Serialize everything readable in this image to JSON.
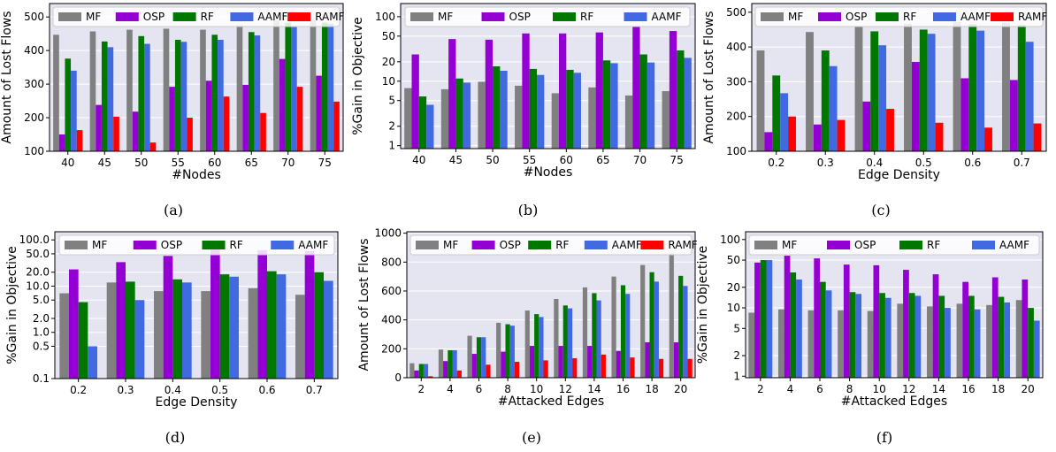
{
  "colors": {
    "MF": "#808080",
    "OSP": "#9400D3",
    "RF": "#007800",
    "AAMF": "#4169E1",
    "RAMF": "#FF0000"
  },
  "chart_data": [
    {
      "id": "a",
      "type": "bar",
      "caption": "(a)",
      "xlabel": "#Nodes",
      "ylabel": "Amount of Lost Flows",
      "yscale": "linear",
      "ylim": [
        100,
        540
      ],
      "yticks": [
        100,
        200,
        300,
        400,
        500
      ],
      "categories": [
        "40",
        "45",
        "50",
        "55",
        "60",
        "65",
        "70",
        "75"
      ],
      "legend": "top",
      "series": [
        {
          "name": "MF",
          "values": [
            447,
            457,
            462,
            465,
            462,
            475,
            490,
            490
          ]
        },
        {
          "name": "OSP",
          "values": [
            150,
            238,
            218,
            292,
            310,
            298,
            375,
            325
          ]
        },
        {
          "name": "RF",
          "values": [
            376,
            427,
            443,
            432,
            447,
            455,
            483,
            483
          ]
        },
        {
          "name": "AAMF",
          "values": [
            340,
            410,
            420,
            426,
            432,
            445,
            470,
            480
          ]
        },
        {
          "name": "RAMF",
          "values": [
            163,
            203,
            126,
            200,
            263,
            214,
            292,
            248
          ]
        }
      ]
    },
    {
      "id": "b",
      "type": "bar",
      "caption": "(b)",
      "xlabel": "#Nodes",
      "ylabel": "%Gain in Objective",
      "yscale": "log",
      "ylim": [
        0.9,
        160
      ],
      "yticks": [
        1,
        2,
        5,
        10,
        20,
        50,
        100
      ],
      "categories": [
        "40",
        "45",
        "50",
        "55",
        "60",
        "65",
        "70",
        "75"
      ],
      "legend": "top",
      "series": [
        {
          "name": "MF",
          "values": [
            7.8,
            7.5,
            9.8,
            8.5,
            6.5,
            8.0,
            6.0,
            7.0
          ]
        },
        {
          "name": "OSP",
          "values": [
            26,
            45,
            44,
            55,
            55,
            57,
            70,
            60
          ]
        },
        {
          "name": "RF",
          "values": [
            5.8,
            11,
            17,
            15.5,
            15,
            21,
            26,
            30
          ]
        },
        {
          "name": "AAMF",
          "values": [
            4.3,
            9.5,
            14.5,
            12.5,
            13.5,
            19,
            19.5,
            23
          ]
        }
      ]
    },
    {
      "id": "c",
      "type": "bar",
      "caption": "(c)",
      "xlabel": "Edge Density",
      "ylabel": "Amount of Lost Flows",
      "yscale": "linear",
      "ylim": [
        100,
        525
      ],
      "yticks": [
        100,
        200,
        300,
        400,
        500
      ],
      "categories": [
        "0.2",
        "0.3",
        "0.4",
        "0.5",
        "0.6",
        "0.7"
      ],
      "legend": "top",
      "series": [
        {
          "name": "MF",
          "values": [
            390,
            443,
            460,
            467,
            472,
            470
          ]
        },
        {
          "name": "OSP",
          "values": [
            155,
            177,
            243,
            357,
            310,
            305
          ]
        },
        {
          "name": "RF",
          "values": [
            318,
            390,
            445,
            450,
            465,
            463
          ]
        },
        {
          "name": "AAMF",
          "values": [
            267,
            345,
            405,
            438,
            447,
            415
          ]
        },
        {
          "name": "RAMF",
          "values": [
            200,
            190,
            222,
            182,
            168,
            180
          ]
        }
      ]
    },
    {
      "id": "d",
      "type": "bar",
      "caption": "(d)",
      "xlabel": "Edge Density",
      "ylabel": "%Gain in Objective",
      "yscale": "log",
      "ylim": [
        0.1,
        150
      ],
      "yticks": [
        0.1,
        0.5,
        1.0,
        2.0,
        5.0,
        10.0,
        20.0,
        50.0,
        100.0
      ],
      "yticklabels": [
        "0.1",
        "0.5",
        "1.0",
        "2.0",
        "5.0",
        "10.0",
        "20.0",
        "50.0",
        "100.0"
      ],
      "categories": [
        "0.2",
        "0.3",
        "0.4",
        "0.5",
        "0.6",
        "0.7"
      ],
      "legend": "top",
      "series": [
        {
          "name": "MF",
          "values": [
            7.0,
            12,
            7.8,
            7.8,
            9.0,
            6.5
          ]
        },
        {
          "name": "OSP",
          "values": [
            23,
            33,
            45,
            65,
            60,
            57
          ]
        },
        {
          "name": "RF",
          "values": [
            4.5,
            12.5,
            14,
            18,
            21,
            20
          ]
        },
        {
          "name": "AAMF",
          "values": [
            0.5,
            5.0,
            12,
            16,
            18,
            13
          ]
        }
      ]
    },
    {
      "id": "e",
      "type": "bar",
      "caption": "(e)",
      "xlabel": "#Attacked Edges",
      "ylabel": "Amount of Lost Flows",
      "yscale": "linear",
      "ylim": [
        0,
        1010
      ],
      "yticks": [
        0,
        200,
        400,
        600,
        800,
        1000
      ],
      "categories": [
        "2",
        "4",
        "6",
        "8",
        "10",
        "12",
        "14",
        "16",
        "18",
        "20"
      ],
      "legend": "top",
      "series": [
        {
          "name": "MF",
          "values": [
            100,
            195,
            290,
            380,
            465,
            545,
            625,
            700,
            780,
            860
          ]
        },
        {
          "name": "OSP",
          "values": [
            50,
            115,
            165,
            180,
            220,
            220,
            220,
            185,
            245,
            245
          ]
        },
        {
          "name": "RF",
          "values": [
            95,
            190,
            280,
            370,
            440,
            500,
            585,
            640,
            730,
            705
          ]
        },
        {
          "name": "AAMF",
          "values": [
            95,
            190,
            280,
            360,
            420,
            480,
            535,
            580,
            665,
            635
          ]
        },
        {
          "name": "RAMF",
          "values": [
            10,
            50,
            90,
            110,
            120,
            135,
            160,
            140,
            130,
            130
          ]
        }
      ]
    },
    {
      "id": "f",
      "type": "bar",
      "caption": "(f)",
      "xlabel": "#Attacked Edges",
      "ylabel": "%Gain in Objective",
      "yscale": "log",
      "ylim": [
        0.95,
        130
      ],
      "yticks": [
        1,
        2,
        5,
        10,
        20,
        50,
        100
      ],
      "categories": [
        "2",
        "4",
        "6",
        "8",
        "10",
        "12",
        "14",
        "16",
        "18",
        "20"
      ],
      "legend": "top",
      "series": [
        {
          "name": "MF",
          "values": [
            8.5,
            9.5,
            9.2,
            9.2,
            9.0,
            11.5,
            10.5,
            11.5,
            11.0,
            13
          ]
        },
        {
          "name": "OSP",
          "values": [
            46,
            58,
            53,
            43,
            42,
            36,
            31,
            24,
            28,
            26
          ]
        },
        {
          "name": "RF",
          "values": [
            50,
            33,
            24,
            17,
            16.5,
            16.5,
            15,
            15,
            14.5,
            10
          ]
        },
        {
          "name": "AAMF",
          "values": [
            50,
            26,
            18,
            16,
            14,
            15,
            10,
            9.5,
            12,
            6.5
          ]
        }
      ]
    }
  ]
}
